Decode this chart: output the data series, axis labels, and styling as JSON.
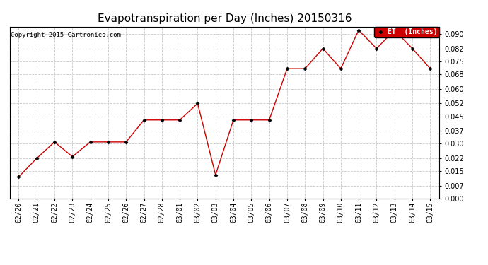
{
  "title": "Evapotranspiration per Day (Inches) 20150316",
  "copyright": "Copyright 2015 Cartronics.com",
  "legend_label": "ET  (Inches)",
  "x_labels": [
    "02/20",
    "02/21",
    "02/22",
    "02/23",
    "02/24",
    "02/25",
    "02/26",
    "02/27",
    "02/28",
    "03/01",
    "03/02",
    "03/03",
    "03/04",
    "03/05",
    "03/06",
    "03/07",
    "03/08",
    "03/09",
    "03/10",
    "03/11",
    "03/12",
    "03/13",
    "03/14",
    "03/15"
  ],
  "y_values": [
    0.012,
    0.022,
    0.031,
    0.023,
    0.031,
    0.031,
    0.031,
    0.043,
    0.043,
    0.043,
    0.052,
    0.013,
    0.043,
    0.043,
    0.043,
    0.071,
    0.071,
    0.082,
    0.071,
    0.092,
    0.082,
    0.092,
    0.082,
    0.071
  ],
  "line_color": "#cc0000",
  "marker": "D",
  "marker_size": 2.5,
  "ylim": [
    0.0,
    0.094
  ],
  "yticks": [
    0.0,
    0.007,
    0.015,
    0.022,
    0.03,
    0.037,
    0.045,
    0.052,
    0.06,
    0.068,
    0.075,
    0.082,
    0.09
  ],
  "background_color": "#ffffff",
  "grid_color": "#c8c8c8",
  "title_fontsize": 11,
  "tick_fontsize": 7,
  "copyright_fontsize": 6.5,
  "legend_bg": "#cc0000",
  "legend_text_color": "#ffffff"
}
